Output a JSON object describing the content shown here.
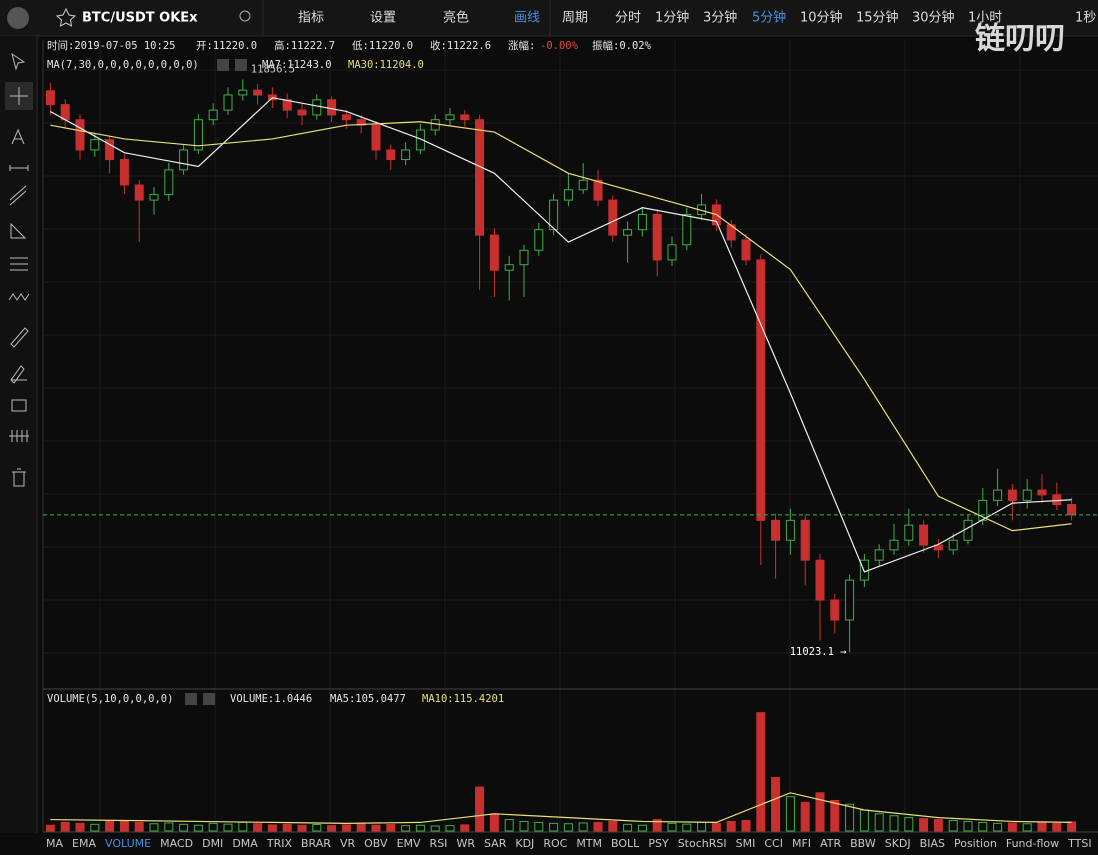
{
  "toolbar": {
    "symbol": "BTC/USDT OKEx",
    "menu": [
      "指标",
      "设置",
      "亮色",
      "画线"
    ],
    "period_label": "周期",
    "periods": [
      "分时",
      "1分钟",
      "3分钟",
      "5分钟",
      "10分钟",
      "15分钟",
      "30分钟",
      "1小时",
      "1秒"
    ],
    "active_period": "5分钟"
  },
  "info": {
    "time": "时间:2019-07-05 10:25",
    "open": "开:11220.0",
    "high": "高:11222.7",
    "low": "低:11220.0",
    "close": "收:11222.6",
    "change_label": "涨幅:",
    "change": "-0.00%",
    "amplitude": "振幅:0.02%"
  },
  "ma_legend": {
    "title": "MA(7,30,0,0,0,0,0,0,0,0)",
    "ma7": "MA7:11243.0",
    "ma30": "MA30:11204.0"
  },
  "vol_legend": {
    "title": "VOLUME(5,10,0,0,0,0)",
    "volume": "VOLUME:1.0446",
    "ma5": "MA5:105.0477",
    "ma10": "MA10:115.4201"
  },
  "watermark": "链叨叨",
  "tabs": [
    "MA",
    "EMA",
    "VOLUME",
    "MACD",
    "DMI",
    "DMA",
    "TRIX",
    "BRAR",
    "VR",
    "OBV",
    "EMV",
    "RSI",
    "WR",
    "SAR",
    "KDJ",
    "ROC",
    "MTM",
    "BOLL",
    "PSY",
    "StochRSI",
    "SMI",
    "CCI",
    "MFI",
    "ATR",
    "BBW",
    "SKDJ",
    "BIAS",
    "Position",
    "Fund-flow",
    "TTSI"
  ],
  "active_tab": "VOLUME",
  "chart_data": {
    "type": "candlestick",
    "up_color": "#3fae49",
    "down_color": "#c8302f",
    "ylim": [
      10971,
      11914
    ],
    "vol_ylim": [
      0,
      660
    ],
    "high_label": "11856.5",
    "low_label": "11023.1 →",
    "candles": [
      [
        11840,
        11852,
        11805,
        11820
      ],
      [
        11820,
        11828,
        11785,
        11798
      ],
      [
        11798,
        11806,
        11740,
        11754
      ],
      [
        11754,
        11778,
        11744,
        11769
      ],
      [
        11769,
        11775,
        11720,
        11740
      ],
      [
        11740,
        11748,
        11690,
        11703
      ],
      [
        11703,
        11710,
        11620,
        11681
      ],
      [
        11681,
        11700,
        11660,
        11689
      ],
      [
        11689,
        11735,
        11680,
        11725
      ],
      [
        11725,
        11762,
        11718,
        11754
      ],
      [
        11754,
        11806,
        11748,
        11798
      ],
      [
        11798,
        11822,
        11790,
        11812
      ],
      [
        11812,
        11845,
        11805,
        11834
      ],
      [
        11834,
        11856.5,
        11826,
        11841
      ],
      [
        11841,
        11850,
        11820,
        11834
      ],
      [
        11834,
        11845,
        11815,
        11827
      ],
      [
        11827,
        11836,
        11800,
        11812
      ],
      [
        11812,
        11822,
        11790,
        11805
      ],
      [
        11805,
        11835,
        11798,
        11827
      ],
      [
        11827,
        11832,
        11795,
        11805
      ],
      [
        11805,
        11812,
        11785,
        11798
      ],
      [
        11798,
        11805,
        11778,
        11790
      ],
      [
        11790,
        11796,
        11740,
        11754
      ],
      [
        11754,
        11762,
        11725,
        11740
      ],
      [
        11740,
        11765,
        11732,
        11754
      ],
      [
        11754,
        11792,
        11748,
        11783
      ],
      [
        11783,
        11806,
        11775,
        11798
      ],
      [
        11798,
        11815,
        11790,
        11805
      ],
      [
        11805,
        11812,
        11788,
        11798
      ],
      [
        11798,
        11805,
        11550,
        11630
      ],
      [
        11630,
        11640,
        11540,
        11579
      ],
      [
        11579,
        11600,
        11535,
        11587
      ],
      [
        11587,
        11616,
        11540,
        11608
      ],
      [
        11608,
        11648,
        11600,
        11638
      ],
      [
        11638,
        11690,
        11630,
        11681
      ],
      [
        11681,
        11720,
        11672,
        11696
      ],
      [
        11696,
        11735,
        11690,
        11710
      ],
      [
        11710,
        11725,
        11672,
        11681
      ],
      [
        11681,
        11688,
        11620,
        11630
      ],
      [
        11630,
        11650,
        11590,
        11638
      ],
      [
        11638,
        11670,
        11628,
        11660
      ],
      [
        11660,
        11668,
        11570,
        11594
      ],
      [
        11594,
        11628,
        11585,
        11616
      ],
      [
        11616,
        11670,
        11608,
        11660
      ],
      [
        11660,
        11690,
        11652,
        11674
      ],
      [
        11674,
        11682,
        11636,
        11645
      ],
      [
        11645,
        11652,
        11612,
        11623
      ],
      [
        11623,
        11632,
        11586,
        11594
      ],
      [
        11594,
        11602,
        11150,
        11215
      ],
      [
        11215,
        11225,
        11130,
        11186
      ],
      [
        11186,
        11232,
        11165,
        11215
      ],
      [
        11215,
        11224,
        11120,
        11157
      ],
      [
        11157,
        11166,
        11040,
        11099
      ],
      [
        11099,
        11108,
        11050,
        11070
      ],
      [
        11070,
        11136,
        11023.1,
        11128
      ],
      [
        11128,
        11166,
        11118,
        11157
      ],
      [
        11157,
        11180,
        11148,
        11172
      ],
      [
        11172,
        11210,
        11165,
        11186
      ],
      [
        11186,
        11232,
        11178,
        11208
      ],
      [
        11208,
        11215,
        11168,
        11179
      ],
      [
        11179,
        11188,
        11160,
        11172
      ],
      [
        11172,
        11196,
        11165,
        11186
      ],
      [
        11186,
        11224,
        11180,
        11215
      ],
      [
        11215,
        11262,
        11208,
        11244
      ],
      [
        11244,
        11290,
        11236,
        11259
      ],
      [
        11259,
        11268,
        11215,
        11244
      ],
      [
        11244,
        11275,
        11232,
        11259
      ],
      [
        11259,
        11282,
        11240,
        11252
      ],
      [
        11252,
        11270,
        11230,
        11238
      ],
      [
        11238,
        11248,
        11215,
        11223
      ]
    ],
    "volumes": [
      30,
      45,
      40,
      35,
      50,
      55,
      45,
      38,
      42,
      35,
      30,
      40,
      36,
      45,
      38,
      32,
      35,
      30,
      34,
      28,
      32,
      36,
      30,
      34,
      28,
      30,
      26,
      28,
      32,
      230,
      90,
      60,
      50,
      45,
      40,
      38,
      42,
      45,
      50,
      35,
      30,
      60,
      40,
      36,
      45,
      40,
      50,
      55,
      620,
      280,
      180,
      150,
      200,
      160,
      140,
      110,
      90,
      80,
      70,
      65,
      60,
      55,
      50,
      45,
      40,
      42,
      38,
      45,
      40,
      48
    ],
    "lines": [
      {
        "color": "#f0f0f0",
        "x": [
          0,
          5,
          10,
          15,
          20,
          25,
          30,
          35,
          40,
          45,
          50,
          55,
          60,
          65,
          69
        ],
        "values": [
          11810,
          11750,
          11730,
          11830,
          11810,
          11770,
          11720,
          11620,
          11670,
          11650,
          11400,
          11140,
          11180,
          11240,
          11245
        ]
      },
      {
        "color": "#e8e07a",
        "x": [
          0,
          5,
          10,
          15,
          20,
          25,
          30,
          35,
          40,
          45,
          50,
          55,
          60,
          65,
          69
        ],
        "values": [
          11790,
          11770,
          11760,
          11770,
          11790,
          11795,
          11780,
          11720,
          11690,
          11660,
          11580,
          11420,
          11250,
          11200,
          11210
        ]
      }
    ],
    "vol_lines": [
      {
        "color": "#e8e07a",
        "x": [
          0,
          5,
          10,
          15,
          20,
          25,
          30,
          35,
          40,
          45,
          50,
          55,
          60,
          65,
          69
        ],
        "values": [
          60,
          55,
          50,
          45,
          40,
          45,
          90,
          70,
          50,
          45,
          200,
          110,
          70,
          50,
          45
        ]
      }
    ]
  }
}
